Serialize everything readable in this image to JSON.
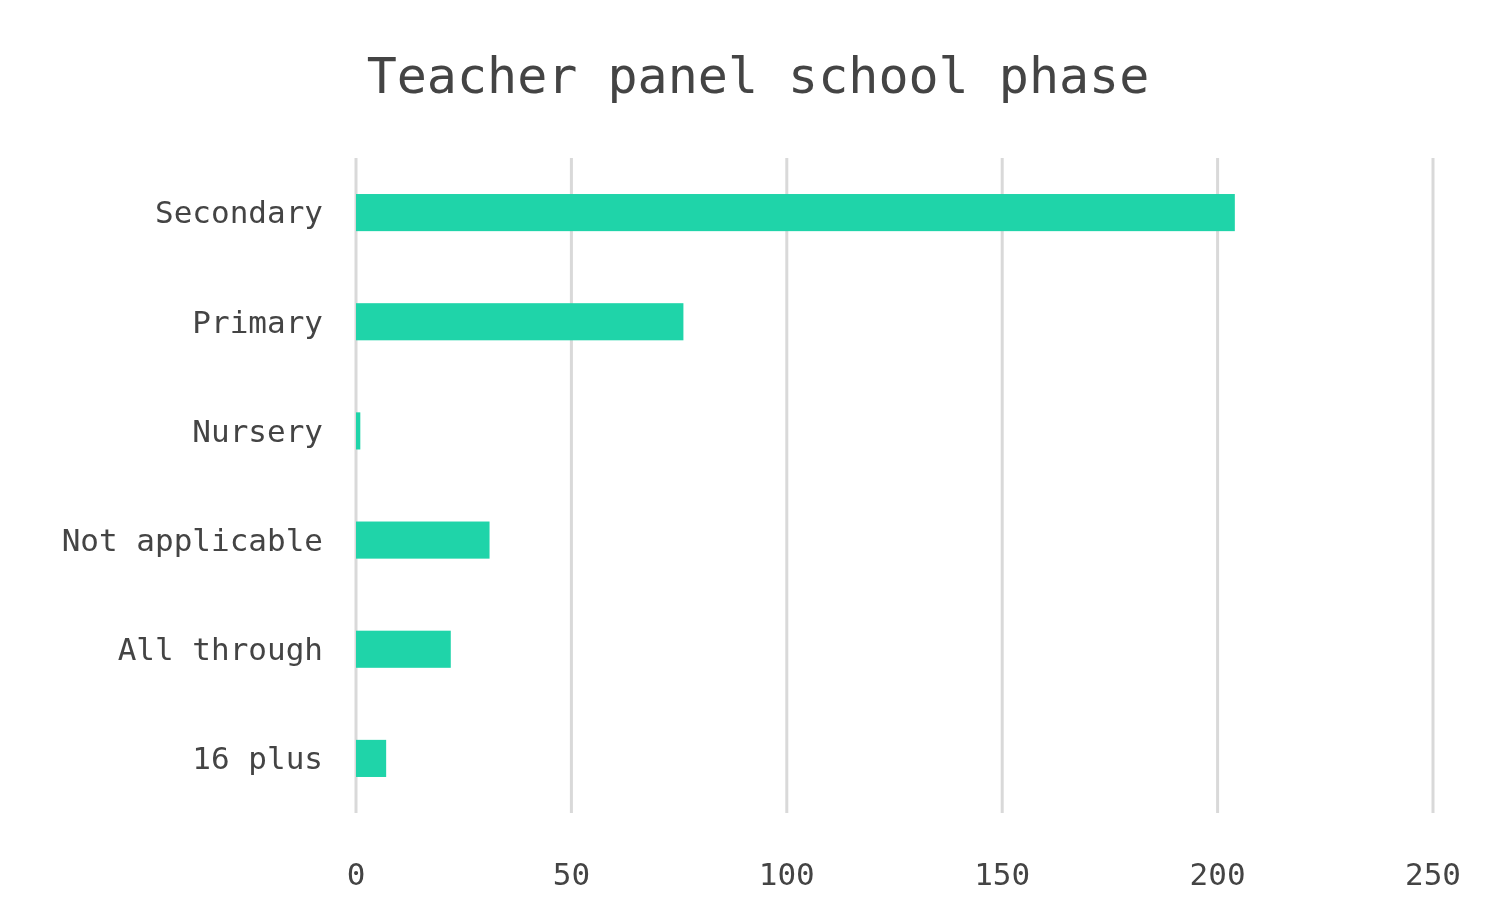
{
  "chart_data": {
    "type": "bar",
    "orientation": "horizontal",
    "title": "Teacher panel school phase",
    "categories": [
      "Secondary",
      "Primary",
      "Nursery",
      "Not applicable",
      "All through",
      "16 plus"
    ],
    "values": [
      204,
      76,
      1,
      31,
      22,
      7
    ],
    "color": "#1fd4a9",
    "xlim": [
      0,
      250
    ],
    "xticks": [
      0,
      50,
      100,
      150,
      200,
      250
    ],
    "grid": "x"
  }
}
